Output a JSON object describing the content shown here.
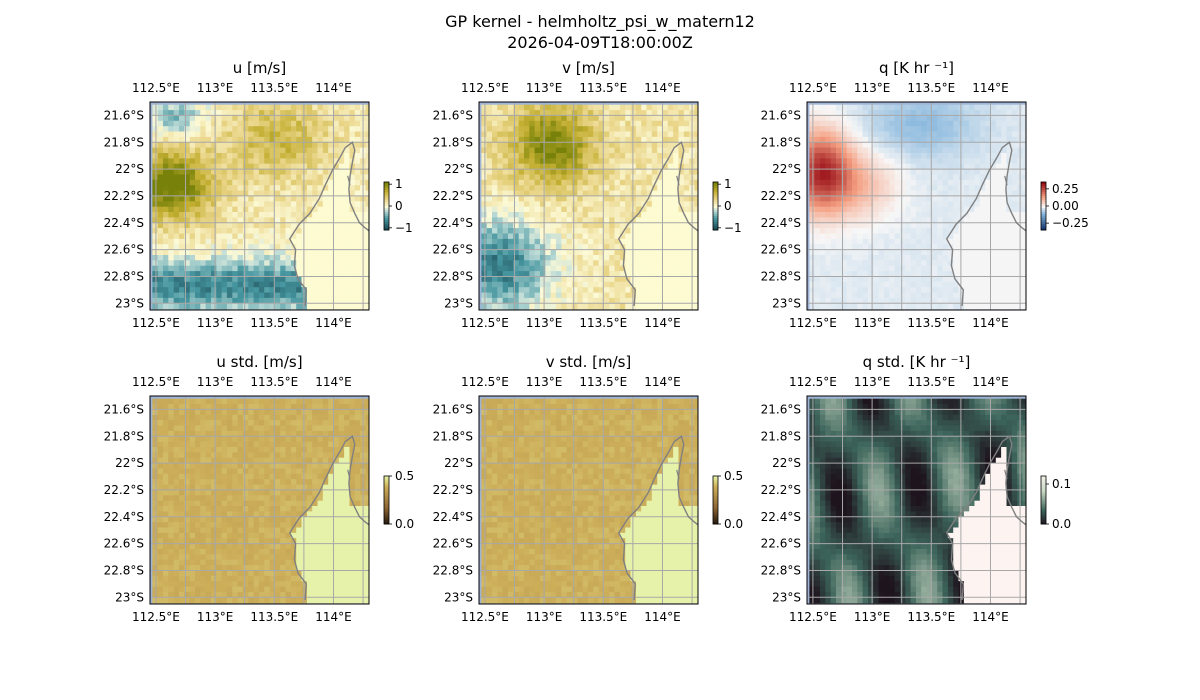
{
  "figure": {
    "title_line1": "GP kernel - helmholtz_psi_w_matern12",
    "title_line2": "2026-04-09T18:00:00Z"
  },
  "chart_data": [
    {
      "type": "heatmap",
      "title": "u [m/s]",
      "field": "u",
      "x_ticks": [
        "112.5°E",
        "113°E",
        "113.5°E",
        "114°E"
      ],
      "x_tick_values": [
        112.5,
        113.0,
        113.5,
        114.0
      ],
      "y_ticks": [
        "21.6°S",
        "21.8°S",
        "22°S",
        "22.2°S",
        "22.4°S",
        "22.6°S",
        "22.8°S",
        "23°S"
      ],
      "y_tick_values": [
        -21.6,
        -21.8,
        -22.0,
        -22.2,
        -22.4,
        -22.6,
        -22.8,
        -23.0
      ],
      "xlim": [
        112.45,
        114.3
      ],
      "ylim": [
        -23.05,
        -21.5
      ],
      "colorbar": {
        "ticks": [
          "1",
          "0",
          "−1"
        ],
        "tick_values": [
          1,
          0,
          -1
        ],
        "range": [
          -1.1,
          1.1
        ],
        "colormap": "teal-white-olive"
      },
      "grid": true
    },
    {
      "type": "heatmap",
      "title": "v [m/s]",
      "field": "v",
      "x_ticks": [
        "112.5°E",
        "113°E",
        "113.5°E",
        "114°E"
      ],
      "x_tick_values": [
        112.5,
        113.0,
        113.5,
        114.0
      ],
      "y_ticks": [
        "21.6°S",
        "21.8°S",
        "22°S",
        "22.2°S",
        "22.4°S",
        "22.6°S",
        "22.8°S",
        "23°S"
      ],
      "y_tick_values": [
        -21.6,
        -21.8,
        -22.0,
        -22.2,
        -22.4,
        -22.6,
        -22.8,
        -23.0
      ],
      "xlim": [
        112.45,
        114.3
      ],
      "ylim": [
        -23.05,
        -21.5
      ],
      "colorbar": {
        "ticks": [
          "1",
          "0",
          "−1"
        ],
        "tick_values": [
          1,
          0,
          -1
        ],
        "range": [
          -1.1,
          1.1
        ],
        "colormap": "teal-white-olive"
      },
      "grid": true
    },
    {
      "type": "heatmap",
      "title": "q [K hr ⁻¹]",
      "field": "q",
      "x_ticks": [
        "112.5°E",
        "113°E",
        "113.5°E",
        "114°E"
      ],
      "x_tick_values": [
        112.5,
        113.0,
        113.5,
        114.0
      ],
      "y_ticks": [
        "21.6°S",
        "21.8°S",
        "22°S",
        "22.2°S",
        "22.4°S",
        "22.6°S",
        "22.8°S",
        "23°S"
      ],
      "y_tick_values": [
        -21.6,
        -21.8,
        -22.0,
        -22.2,
        -22.4,
        -22.6,
        -22.8,
        -23.0
      ],
      "xlim": [
        112.45,
        114.3
      ],
      "ylim": [
        -23.05,
        -21.5
      ],
      "colorbar": {
        "ticks": [
          "0.25",
          "0.00",
          "−0.25"
        ],
        "tick_values": [
          0.25,
          0.0,
          -0.25
        ],
        "range": [
          -0.35,
          0.35
        ],
        "colormap": "blue-white-red"
      },
      "grid": true
    },
    {
      "type": "heatmap",
      "title": "u std. [m/s]",
      "field": "u_std",
      "x_ticks": [
        "112.5°E",
        "113°E",
        "113.5°E",
        "114°E"
      ],
      "x_tick_values": [
        112.5,
        113.0,
        113.5,
        114.0
      ],
      "y_ticks": [
        "21.6°S",
        "21.8°S",
        "22°S",
        "22.2°S",
        "22.4°S",
        "22.6°S",
        "22.8°S",
        "23°S"
      ],
      "y_tick_values": [
        -21.6,
        -21.8,
        -22.0,
        -22.2,
        -22.4,
        -22.6,
        -22.8,
        -23.0
      ],
      "xlim": [
        112.45,
        114.3
      ],
      "ylim": [
        -23.05,
        -21.5
      ],
      "colorbar": {
        "ticks": [
          "0.5",
          "0.0"
        ],
        "tick_values": [
          0.5,
          0.0
        ],
        "range": [
          0.0,
          0.5
        ],
        "colormap": "sequential-olive"
      },
      "grid": true
    },
    {
      "type": "heatmap",
      "title": "v std. [m/s]",
      "field": "v_std",
      "x_ticks": [
        "112.5°E",
        "113°E",
        "113.5°E",
        "114°E"
      ],
      "x_tick_values": [
        112.5,
        113.0,
        113.5,
        114.0
      ],
      "y_ticks": [
        "21.6°S",
        "21.8°S",
        "22°S",
        "22.2°S",
        "22.4°S",
        "22.6°S",
        "22.8°S",
        "23°S"
      ],
      "y_tick_values": [
        -21.6,
        -21.8,
        -22.0,
        -22.2,
        -22.4,
        -22.6,
        -22.8,
        -23.0
      ],
      "xlim": [
        112.45,
        114.3
      ],
      "ylim": [
        -23.05,
        -21.5
      ],
      "colorbar": {
        "ticks": [
          "0.5",
          "0.0"
        ],
        "tick_values": [
          0.5,
          0.0
        ],
        "range": [
          0.0,
          0.5
        ],
        "colormap": "sequential-olive"
      },
      "grid": true
    },
    {
      "type": "heatmap",
      "title": "q std. [K hr ⁻¹]",
      "field": "q_std",
      "x_ticks": [
        "112.5°E",
        "113°E",
        "113.5°E",
        "114°E"
      ],
      "x_tick_values": [
        112.5,
        113.0,
        113.5,
        114.0
      ],
      "y_ticks": [
        "21.6°S",
        "21.8°S",
        "22°S",
        "22.2°S",
        "22.4°S",
        "22.6°S",
        "22.8°S",
        "23°S"
      ],
      "y_tick_values": [
        -21.6,
        -21.8,
        -22.0,
        -22.2,
        -22.4,
        -22.6,
        -22.8,
        -23.0
      ],
      "xlim": [
        112.45,
        114.3
      ],
      "ylim": [
        -23.05,
        -21.5
      ],
      "colorbar": {
        "ticks": [
          "0.1",
          "0.0"
        ],
        "tick_values": [
          0.1,
          0.0
        ],
        "range": [
          0.0,
          0.12
        ],
        "colormap": "sequential-green"
      },
      "grid": true
    }
  ]
}
